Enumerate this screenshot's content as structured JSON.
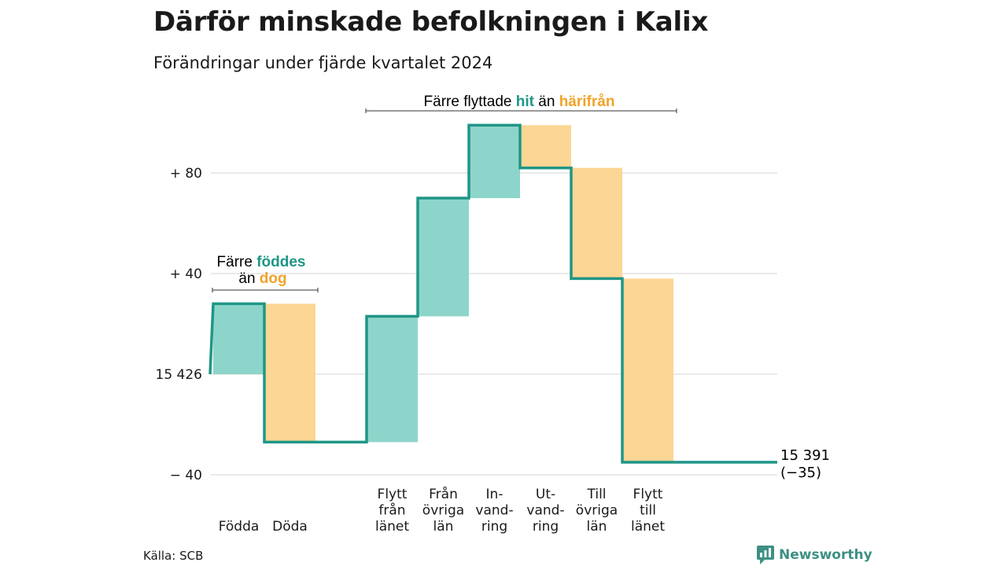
{
  "title": "Därför minskade befolkningen i Kalix",
  "subtitle": "Förändringar under fjärde kvartalet 2024",
  "source": "Källa: SCB",
  "brand": "Newsworthy",
  "colors": {
    "inflow": "#8dd5ca",
    "outflow": "#fbd694",
    "line": "#1f9686",
    "teal_text": "#1f9686",
    "orange_text": "#f0a32a",
    "grid": "#dddddd"
  },
  "chart_data": {
    "type": "waterfall",
    "start_value": 15426,
    "start_label": "15 426",
    "end_value": 15391,
    "end_label": "15 391",
    "end_change": "(−35)",
    "y_ticks": [
      {
        "value": 80,
        "label": "+ 80"
      },
      {
        "value": 40,
        "label": "+ 40"
      },
      {
        "value": 0,
        "label": "15 426"
      },
      {
        "value": -40,
        "label": "− 40"
      }
    ],
    "ylim": [
      -44,
      107
    ],
    "categories": [
      {
        "label": [
          "Födda"
        ],
        "change": 28,
        "kind": "in"
      },
      {
        "label": [
          "Döda"
        ],
        "change": -55,
        "kind": "out"
      },
      {
        "label": [
          ""
        ],
        "change": 0,
        "kind": "none"
      },
      {
        "label": [
          "Flytt",
          "från",
          "länet"
        ],
        "change": 50,
        "kind": "in"
      },
      {
        "label": [
          "Från",
          "övriga",
          "län"
        ],
        "change": 47,
        "kind": "in"
      },
      {
        "label": [
          "In-",
          "vand-",
          "ring"
        ],
        "change": 29,
        "kind": "in"
      },
      {
        "label": [
          "Ut-",
          "vand-",
          "ring"
        ],
        "change": -17,
        "kind": "out"
      },
      {
        "label": [
          "Till",
          "övriga",
          "län"
        ],
        "change": -44,
        "kind": "out"
      },
      {
        "label": [
          "Flytt",
          "till",
          "länet"
        ],
        "change": -73,
        "kind": "out"
      }
    ],
    "annotations": {
      "births": {
        "line1_prefix": "Färre ",
        "line1_highlight": "föddes",
        "line2_prefix": "än ",
        "line2_highlight": "dog"
      },
      "migration": {
        "prefix": "Färre flyttade ",
        "highlight1": "hit",
        "middle": " än ",
        "highlight2": "härifrån"
      }
    }
  }
}
